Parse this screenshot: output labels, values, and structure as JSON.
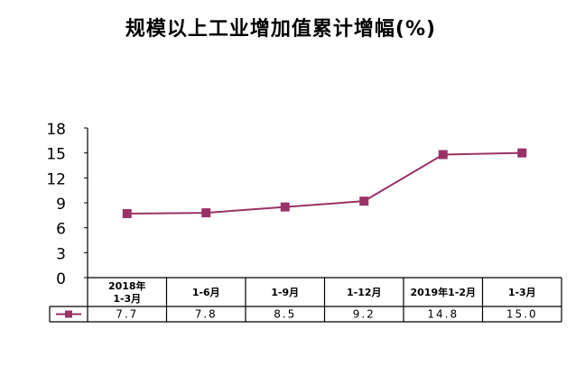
{
  "chart_data": {
    "type": "line",
    "title": "规模以上工业增加值累计增幅(%)",
    "categories": [
      [
        "2018年",
        "1-3月"
      ],
      [
        "1-6月"
      ],
      [
        "1-9月"
      ],
      [
        "1-12月"
      ],
      [
        "2019年1-2月"
      ],
      [
        "1-3月"
      ]
    ],
    "series": [
      {
        "name": "",
        "values": [
          7.7,
          7.8,
          8.5,
          9.2,
          14.8,
          15.0
        ],
        "labels": [
          "7.7",
          "7.8",
          "8.5",
          "9.2",
          "14.8",
          "15.0"
        ],
        "color": "#993366",
        "marker": "square"
      }
    ],
    "ylim": [
      0,
      18
    ],
    "yticks": [
      "0",
      "3",
      "6",
      "9",
      "12",
      "15",
      "18"
    ],
    "grid": false,
    "legend": "data-table-left"
  }
}
